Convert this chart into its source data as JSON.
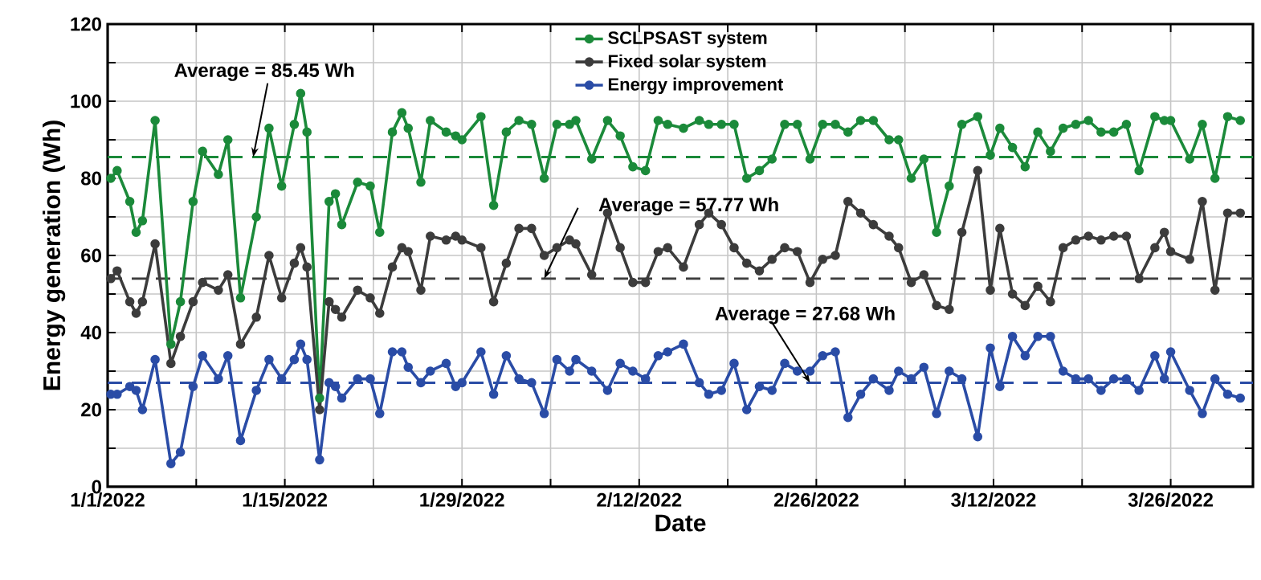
{
  "chart_data": {
    "type": "line",
    "xlabel": "Date",
    "ylabel": "Energy generation (Wh)",
    "x": [
      "2022-01-01T06:00",
      "2022-01-01T18:00",
      "2022-01-02T18:00",
      "2022-01-03T06:00",
      "2022-01-03T18:00",
      "2022-01-04T18:00",
      "2022-01-06T00:00",
      "2022-01-06T18:00",
      "2022-01-07T18:00",
      "2022-01-08T12:00",
      "2022-01-09T18:00",
      "2022-01-10T12:00",
      "2022-01-11T12:00",
      "2022-01-12T18:00",
      "2022-01-13T18:00",
      "2022-01-14T18:00",
      "2022-01-15T18:00",
      "2022-01-16T06:00",
      "2022-01-16T18:00",
      "2022-01-17T18:00",
      "2022-01-18T12:00",
      "2022-01-19T00:00",
      "2022-01-19T12:00",
      "2022-01-20T18:00",
      "2022-01-21T18:00",
      "2022-01-22T12:00",
      "2022-01-23T12:00",
      "2022-01-24T06:00",
      "2022-01-24T18:00",
      "2022-01-25T18:00",
      "2022-01-26T12:00",
      "2022-01-27T18:00",
      "2022-01-28T12:00",
      "2022-01-29T00:00",
      "2022-01-30T12:00",
      "2022-01-31T12:00",
      "2022-02-01T12:00",
      "2022-02-02T12:00",
      "2022-02-03T12:00",
      "2022-02-04T12:00",
      "2022-02-05T12:00",
      "2022-02-06T12:00",
      "2022-02-07T00:00",
      "2022-02-08T06:00",
      "2022-02-09T12:00",
      "2022-02-10T12:00",
      "2022-02-11T12:00",
      "2022-02-12T12:00",
      "2022-02-13T12:00",
      "2022-02-14T06:00",
      "2022-02-15T12:00",
      "2022-02-16T18:00",
      "2022-02-17T12:00",
      "2022-02-18T12:00",
      "2022-02-19T12:00",
      "2022-02-20T12:00",
      "2022-02-21T12:00",
      "2022-02-22T12:00",
      "2022-02-23T12:00",
      "2022-02-24T12:00",
      "2022-02-25T12:00",
      "2022-02-26T12:00",
      "2022-02-27T12:00",
      "2022-02-28T12:00",
      "2022-03-01T12:00",
      "2022-03-02T12:00",
      "2022-03-03T18:00",
      "2022-03-04T12:00",
      "2022-03-05T12:00",
      "2022-03-06T12:00",
      "2022-03-07T12:00",
      "2022-03-08T12:00",
      "2022-03-09T12:00",
      "2022-03-10T18:00",
      "2022-03-11T18:00",
      "2022-03-12T12:00",
      "2022-03-13T12:00",
      "2022-03-14T12:00",
      "2022-03-15T12:00",
      "2022-03-16T12:00",
      "2022-03-17T12:00",
      "2022-03-18T12:00",
      "2022-03-19T12:00",
      "2022-03-20T12:00",
      "2022-03-21T12:00",
      "2022-03-22T12:00",
      "2022-03-23T12:00",
      "2022-03-24T18:00",
      "2022-03-25T12:00",
      "2022-03-26T00:00",
      "2022-03-27T12:00",
      "2022-03-28T12:00",
      "2022-03-29T12:00",
      "2022-03-30T12:00",
      "2022-03-31T12:00"
    ],
    "series": [
      {
        "name": "SCLPSAST system",
        "color": "#1b8a3a",
        "values": [
          80,
          82,
          74,
          66,
          69,
          95,
          37,
          48,
          74,
          87,
          81,
          90,
          49,
          70,
          93,
          78,
          94,
          102,
          92,
          23,
          74,
          76,
          68,
          79,
          78,
          66,
          92,
          97,
          93,
          79,
          95,
          92,
          91,
          90,
          96,
          73,
          92,
          95,
          94,
          80,
          94,
          94,
          95,
          85,
          95,
          91,
          83,
          82,
          95,
          94,
          93,
          95,
          94,
          94,
          94,
          80,
          82,
          85,
          94,
          94,
          85,
          94,
          94,
          92,
          95,
          95,
          90,
          90,
          80,
          85,
          66,
          78,
          94,
          96,
          86,
          93,
          88,
          83,
          92,
          87,
          93,
          94,
          95,
          92,
          92,
          94,
          82,
          96,
          95,
          95,
          85,
          94,
          80,
          96,
          95
        ]
      },
      {
        "name": "Fixed solar system",
        "color": "#3c3c3c",
        "values": [
          54,
          56,
          48,
          45,
          48,
          63,
          32,
          39,
          48,
          53,
          51,
          55,
          37,
          44,
          60,
          49,
          58,
          62,
          57,
          20,
          48,
          46,
          44,
          51,
          49,
          45,
          57,
          62,
          61,
          51,
          65,
          64,
          65,
          64,
          62,
          48,
          58,
          67,
          67,
          60,
          62,
          64,
          63,
          55,
          71,
          62,
          53,
          53,
          61,
          62,
          57,
          68,
          71,
          68,
          62,
          58,
          56,
          59,
          62,
          61,
          53,
          59,
          60,
          74,
          71,
          68,
          65,
          62,
          53,
          55,
          47,
          46,
          66,
          82,
          51,
          67,
          50,
          47,
          52,
          48,
          62,
          64,
          65,
          64,
          65,
          65,
          54,
          62,
          66,
          61,
          59,
          74,
          51,
          71,
          71
        ]
      },
      {
        "name": "Energy improvement",
        "color": "#2a4ca6",
        "values": [
          24,
          24,
          26,
          25,
          20,
          33,
          6,
          9,
          26,
          34,
          28,
          34,
          12,
          25,
          33,
          28,
          33,
          37,
          33,
          7,
          27,
          26,
          23,
          28,
          28,
          19,
          35,
          35,
          31,
          27,
          30,
          32,
          26,
          27,
          35,
          24,
          34,
          28,
          27,
          19,
          33,
          30,
          33,
          30,
          25,
          32,
          30,
          28,
          34,
          35,
          37,
          27,
          24,
          25,
          32,
          20,
          26,
          25,
          32,
          30,
          30,
          34,
          35,
          18,
          24,
          28,
          25,
          30,
          28,
          31,
          19,
          30,
          28,
          13,
          36,
          26,
          39,
          34,
          39,
          39,
          30,
          28,
          28,
          25,
          28,
          28,
          25,
          34,
          28,
          35,
          25,
          19,
          28,
          24,
          23
        ]
      }
    ],
    "xlim": [
      "2022-01-01",
      "2022-04-01T12:00"
    ],
    "xticks": [
      {
        "value": "2022-01-01",
        "label": "1/1/2022"
      },
      {
        "value": "2022-01-08",
        "label": null
      },
      {
        "value": "2022-01-15",
        "label": "1/15/2022"
      },
      {
        "value": "2022-01-22",
        "label": null
      },
      {
        "value": "2022-01-29",
        "label": "1/29/2022"
      },
      {
        "value": "2022-02-05",
        "label": null
      },
      {
        "value": "2022-02-12",
        "label": "2/12/2022"
      },
      {
        "value": "2022-02-19",
        "label": null
      },
      {
        "value": "2022-02-26",
        "label": "2/26/2022"
      },
      {
        "value": "2022-03-05",
        "label": null
      },
      {
        "value": "2022-03-12",
        "label": "3/12/2022"
      },
      {
        "value": "2022-03-19",
        "label": null
      },
      {
        "value": "2022-03-26",
        "label": "3/26/2022"
      }
    ],
    "ylim": [
      0,
      120
    ],
    "yticks": [
      0,
      {
        "value": 10,
        "label": null
      },
      20,
      {
        "value": 30,
        "label": null
      },
      40,
      {
        "value": 50,
        "label": null
      },
      60,
      {
        "value": 70,
        "label": null
      },
      80,
      {
        "value": 90,
        "label": null
      },
      100,
      {
        "value": 110,
        "label": null
      },
      120
    ],
    "ref_lines": [
      {
        "axis": "y",
        "value": 85.5,
        "color": "#1b8a3a",
        "line_style": "dashed"
      },
      {
        "axis": "y",
        "value": 54,
        "color": "#3c3c3c",
        "line_style": "dashed"
      },
      {
        "axis": "y",
        "value": 27,
        "color": "#2a4ca6",
        "line_style": "dashed"
      }
    ],
    "annotations": [
      {
        "text": "Average = 85.45 Wh",
        "x": "2022-01-12T12:00",
        "y": 85.5
      },
      {
        "text": "Average = 57.77 Wh",
        "x": "2022-02-04T12:00",
        "y": 54
      },
      {
        "text": "Average = 27.68 Wh",
        "x": "2022-02-25T12:00",
        "y": 27
      }
    ],
    "grid": true,
    "legend": "top",
    "marker": "circle",
    "line_style": "solid"
  }
}
